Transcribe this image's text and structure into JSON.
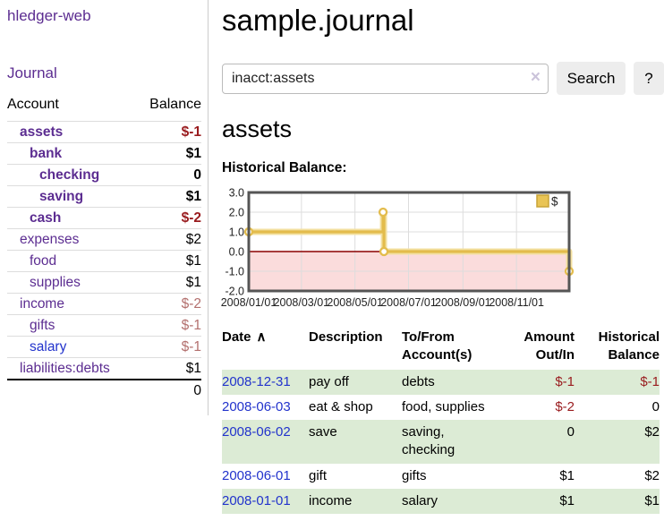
{
  "brand": "hledger-web",
  "nav": {
    "journal": "Journal"
  },
  "sidebar": {
    "columns": {
      "account": "Account",
      "balance": "Balance"
    },
    "accounts": [
      {
        "name": "assets",
        "balance": "$-1",
        "level": 0,
        "bold": true,
        "name_color": "purple",
        "balance_color": "neg"
      },
      {
        "name": "bank",
        "balance": "$1",
        "level": 1,
        "bold": true,
        "name_color": "purple",
        "balance_color": ""
      },
      {
        "name": "checking",
        "balance": "0",
        "level": 2,
        "bold": true,
        "name_color": "purple",
        "balance_color": ""
      },
      {
        "name": "saving",
        "balance": "$1",
        "level": 2,
        "bold": true,
        "name_color": "purple",
        "balance_color": ""
      },
      {
        "name": "cash",
        "balance": "$-2",
        "level": 1,
        "bold": true,
        "name_color": "purple",
        "balance_color": "neg"
      },
      {
        "name": "expenses",
        "balance": "$2",
        "level": 0,
        "bold": false,
        "name_color": "purple",
        "balance_color": ""
      },
      {
        "name": "food",
        "balance": "$1",
        "level": 1,
        "bold": false,
        "name_color": "purple",
        "balance_color": ""
      },
      {
        "name": "supplies",
        "balance": "$1",
        "level": 1,
        "bold": false,
        "name_color": "purple",
        "balance_color": ""
      },
      {
        "name": "income",
        "balance": "$-2",
        "level": 0,
        "bold": false,
        "name_color": "purple",
        "balance_color": "dim"
      },
      {
        "name": "gifts",
        "balance": "$-1",
        "level": 1,
        "bold": false,
        "name_color": "purple",
        "balance_color": "dim"
      },
      {
        "name": "salary",
        "balance": "$-1",
        "level": 1,
        "bold": false,
        "name_color": "blue",
        "balance_color": "dim"
      },
      {
        "name": "liabilities:debts",
        "balance": "$1",
        "level": 0,
        "bold": false,
        "name_color": "purple",
        "balance_color": ""
      }
    ],
    "total": "0"
  },
  "header": {
    "title": "sample.journal"
  },
  "search": {
    "query": "inacct:assets",
    "clear_icon": "×",
    "button": "Search",
    "help_button": "?"
  },
  "account_page": {
    "title": "assets",
    "chart_label": "Historical Balance:"
  },
  "chart_data": {
    "type": "line",
    "step": true,
    "title": "Historical Balance:",
    "series": [
      {
        "name": "$",
        "color": "#e3bc4c",
        "points": [
          {
            "x": "2008-01-01",
            "y": 1
          },
          {
            "x": "2008-06-02",
            "y": 2
          },
          {
            "x": "2008-06-03",
            "y": 0
          },
          {
            "x": "2008-12-31",
            "y": -1
          }
        ]
      }
    ],
    "x_range": [
      "2008-01-01",
      "2008-12-31"
    ],
    "ylim": [
      -2,
      3
    ],
    "y_ticks": [
      "3.0",
      "2.0",
      "1.0",
      "0.0",
      "-1.0",
      "-2.0"
    ],
    "x_tick_dates": [
      "2008-01-01",
      "2008-03-01",
      "2008-05-01",
      "2008-07-01",
      "2008-09-01",
      "2008-11-01"
    ],
    "x_tick_labels": [
      "2008/01/01",
      "2008/03/01",
      "2008/05/01",
      "2008/07/01",
      "2008/09/01",
      "2008/11/01"
    ],
    "legend": [
      "$"
    ],
    "legend_position": "top-right",
    "grid": true,
    "colors": {
      "negative_region_fill": "#fbdcdc",
      "zero_line": "#8b0000",
      "plot_border": "#555555",
      "gridline": "#dddddd",
      "line_glow": "#f3e0a0",
      "marker_fill": "#ffffff",
      "legend_fill": "#e9c455",
      "legend_border": "#c9a437"
    }
  },
  "register": {
    "columns": [
      "Date",
      "Description",
      "To/From Account(s)",
      "Amount Out/In",
      "Historical Balance"
    ],
    "sort_icon": "∧",
    "rows": [
      {
        "date": "2008-12-31",
        "description": "pay off",
        "accounts": "debts",
        "amount": "$-1",
        "amount_neg": true,
        "balance": "$-1",
        "balance_neg": true
      },
      {
        "date": "2008-06-03",
        "description": "eat & shop",
        "accounts": "food, supplies",
        "amount": "$-2",
        "amount_neg": true,
        "balance": "0",
        "balance_neg": false
      },
      {
        "date": "2008-06-02",
        "description": "save",
        "accounts": "saving, checking",
        "amount": "0",
        "amount_neg": false,
        "balance": "$2",
        "balance_neg": false
      },
      {
        "date": "2008-06-01",
        "description": "gift",
        "accounts": "gifts",
        "amount": "$1",
        "amount_neg": false,
        "balance": "$2",
        "balance_neg": false
      },
      {
        "date": "2008-01-01",
        "description": "income",
        "accounts": "salary",
        "amount": "$1",
        "amount_neg": false,
        "balance": "$1",
        "balance_neg": false
      }
    ]
  },
  "colors": {
    "link_purple": "#5c2d91",
    "link_blue": "#2233cc",
    "negative": "#991b1e",
    "negative_dim": "#b3706e",
    "row_green": "#dcebd5",
    "button_bg": "#ededed"
  }
}
